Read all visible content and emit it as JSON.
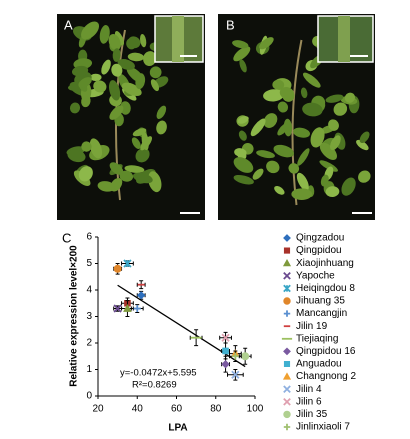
{
  "panels": {
    "a": "A",
    "b": "B"
  },
  "chart_data": {
    "type": "scatter",
    "panel": "C",
    "xlabel": "LPA",
    "ylabel": "Relative expression level×200",
    "xlim": [
      20,
      100
    ],
    "xticks": [
      20,
      40,
      60,
      80,
      100
    ],
    "ylim": [
      0,
      6
    ],
    "yticks": [
      0,
      1,
      2,
      3,
      4,
      5,
      6
    ],
    "equation": "y=-0.0472x+5.595",
    "r_squared": "R²=0.8269",
    "trendline": {
      "slope": -0.0472,
      "intercept": 5.595
    },
    "series": [
      {
        "name": "Qingzadou",
        "color": "#2e6fbd",
        "marker": "diamond",
        "x": [
          42
        ],
        "values": [
          3.8
        ],
        "xerr": [
          2
        ],
        "yerr": [
          0.15
        ]
      },
      {
        "name": "Qingpidou",
        "color": "#a8322a",
        "marker": "square",
        "x": [
          35
        ],
        "values": [
          3.5
        ],
        "xerr": [
          3
        ],
        "yerr": [
          0.2
        ]
      },
      {
        "name": "Xiaojinhuang",
        "color": "#7f9a3c",
        "marker": "triangle",
        "x": [
          35
        ],
        "values": [
          3.3
        ],
        "xerr": [
          3
        ],
        "yerr": [
          0.3
        ]
      },
      {
        "name": "Yapoche",
        "color": "#6a4a8f",
        "marker": "x",
        "x": [
          30
        ],
        "values": [
          3.3
        ],
        "xerr": [
          2
        ],
        "yerr": [
          0.1
        ]
      },
      {
        "name": "Heiqingdou 8",
        "color": "#3aa6c6",
        "marker": "asterisk",
        "x": [
          35
        ],
        "values": [
          5.0
        ],
        "xerr": [
          3
        ],
        "yerr": [
          0.1
        ]
      },
      {
        "name": "Jihuang 35",
        "color": "#e0862a",
        "marker": "circle",
        "x": [
          30
        ],
        "values": [
          4.8
        ],
        "xerr": [
          2
        ],
        "yerr": [
          0.2
        ]
      },
      {
        "name": "Mancangjin",
        "color": "#5a8fd0",
        "marker": "plus",
        "x": [
          40
        ],
        "values": [
          3.3
        ],
        "xerr": [
          3
        ],
        "yerr": [
          0.15
        ]
      },
      {
        "name": "Jilin 19",
        "color": "#d04040",
        "marker": "dash",
        "x": [
          42
        ],
        "values": [
          4.2
        ],
        "xerr": [
          2
        ],
        "yerr": [
          0.15
        ]
      },
      {
        "name": "Tiejiaqing",
        "color": "#9cc060",
        "marker": "line",
        "x": [
          70
        ],
        "values": [
          2.2
        ],
        "xerr": [
          3
        ],
        "yerr": [
          0.3
        ]
      },
      {
        "name": "Qingpidou 16",
        "color": "#7a5aa0",
        "marker": "diamond",
        "x": [
          85
        ],
        "values": [
          1.2
        ],
        "xerr": [
          2
        ],
        "yerr": [
          0.3
        ]
      },
      {
        "name": "Anguadou",
        "color": "#40b0d0",
        "marker": "square",
        "x": [
          85
        ],
        "values": [
          1.7
        ],
        "xerr": [
          2
        ],
        "yerr": [
          0.3
        ]
      },
      {
        "name": "Changnong 2",
        "color": "#f0a030",
        "marker": "triangle",
        "x": [
          90
        ],
        "values": [
          1.6
        ],
        "xerr": [
          3
        ],
        "yerr": [
          0.3
        ]
      },
      {
        "name": "Jilin 4",
        "color": "#8fb0e0",
        "marker": "x",
        "x": [
          90
        ],
        "values": [
          0.8
        ],
        "xerr": [
          4
        ],
        "yerr": [
          0.2
        ]
      },
      {
        "name": "Jilin 6",
        "color": "#e0a0b0",
        "marker": "x",
        "x": [
          85
        ],
        "values": [
          2.2
        ],
        "xerr": [
          3
        ],
        "yerr": [
          0.2
        ]
      },
      {
        "name": "Jilin 35",
        "color": "#b0d090",
        "marker": "circle",
        "x": [
          95
        ],
        "values": [
          1.5
        ],
        "xerr": [
          3
        ],
        "yerr": [
          0.3
        ]
      },
      {
        "name": "Jinlinxiaoli 7",
        "color": "#a0c070",
        "marker": "plus",
        "x": [
          90
        ],
        "values": [
          1.5
        ],
        "xerr": [
          3
        ],
        "yerr": [
          0.2
        ]
      }
    ]
  }
}
